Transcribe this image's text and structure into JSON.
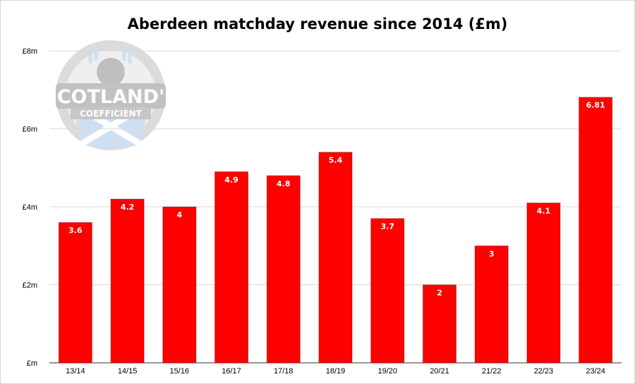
{
  "chart_data": {
    "type": "bar",
    "title": "Aberdeen matchday revenue since 2014 (£m)",
    "categories": [
      "13/14",
      "14/15",
      "15/16",
      "16/17",
      "17/18",
      "18/19",
      "19/20",
      "20/21",
      "21/22",
      "22/23",
      "23/24"
    ],
    "values": [
      3.6,
      4.2,
      4,
      4.9,
      4.8,
      5.4,
      3.7,
      2,
      3,
      4.1,
      6.81
    ],
    "data_labels": [
      "3.6",
      "4.2",
      "4",
      "4.9",
      "4.8",
      "5.4",
      "3.7",
      "2",
      "3",
      "4.1",
      "6.81"
    ],
    "ylim": [
      0,
      8
    ],
    "yticks": [
      0,
      2,
      4,
      6,
      8
    ],
    "ytick_labels": [
      "£m",
      "£2m",
      "£4m",
      "£6m",
      "£8m"
    ],
    "xlabel": "",
    "ylabel": "",
    "bar_color": "#ff0000",
    "grid": true,
    "legend": "none"
  },
  "watermark": {
    "line1": "SCOTLAND'S",
    "line2": "COEFFICIENT"
  }
}
